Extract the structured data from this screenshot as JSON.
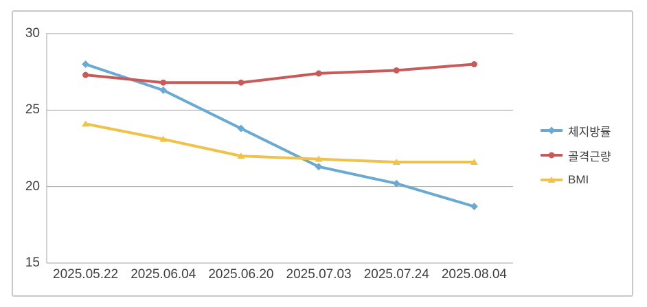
{
  "chart_data": {
    "type": "line",
    "title": "",
    "xlabel": "",
    "ylabel": "",
    "categories": [
      "2025.05.22",
      "2025.06.04",
      "2025.06.20",
      "2025.07.03",
      "2025.07.24",
      "2025.08.04"
    ],
    "series": [
      {
        "id": "body-fat-percentage",
        "name": "체지방률",
        "color": "#6AAAD2",
        "marker": "diamond",
        "values": [
          28.0,
          26.3,
          23.8,
          21.3,
          20.2,
          18.7
        ]
      },
      {
        "id": "skeletal-muscle-mass",
        "name": "골격근량",
        "color": "#C75B59",
        "marker": "circle",
        "values": [
          27.3,
          26.8,
          26.8,
          27.4,
          27.6,
          28.0
        ]
      },
      {
        "id": "bmi",
        "name": "BMI",
        "color": "#EFC24B",
        "marker": "triangle",
        "values": [
          24.1,
          23.1,
          22.0,
          21.8,
          21.6,
          21.6
        ]
      }
    ],
    "yticks": [
      30,
      25,
      20,
      15
    ],
    "ylim": [
      15,
      30
    ],
    "grid": "horizontal",
    "legend_position": "right",
    "grid_color": "#A6A6A6",
    "text_color": "#3F3F3F",
    "frame_border_color": "#C8C8C8",
    "background_color": "#FFFFFF"
  }
}
